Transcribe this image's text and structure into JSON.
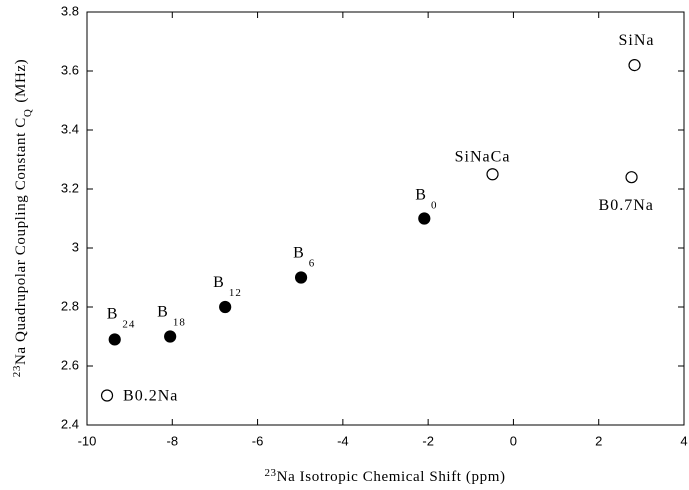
{
  "chart_data": {
    "type": "scatter",
    "x_label": {
      "sup": "23",
      "text": "Na Isotropic Chemical Shift (ppm)"
    },
    "y_label": {
      "sup": "23",
      "main": "Na Quadrupolar Coupling Constant C",
      "sub": "Q",
      "tail": "(MHz)"
    },
    "xlim": [
      -10,
      4
    ],
    "xticks": [
      -10,
      -8,
      -6,
      -4,
      -2,
      0,
      2,
      4
    ],
    "ylim": [
      2.4,
      3.8
    ],
    "yticks": [
      2.4,
      2.6,
      2.8,
      3,
      3.2,
      3.4,
      3.6,
      3.8
    ],
    "series": [
      {
        "marker": "filled",
        "color": "#000000",
        "x": [
          -9.35,
          -8.05,
          -6.76,
          -4.98,
          -2.09
        ],
        "values": [
          2.69,
          2.7,
          2.8,
          2.9,
          3.1
        ],
        "labels": [
          {
            "text": "B",
            "sub": "24"
          },
          {
            "text": "B",
            "sub": "18"
          },
          {
            "text": "B",
            "sub": "12"
          },
          {
            "text": "B",
            "sub": "6"
          },
          {
            "text": "B",
            "sub": "0"
          }
        ]
      },
      {
        "marker": "open",
        "color": "#000000",
        "x": [
          -9.53,
          -0.49,
          2.77,
          2.84
        ],
        "values": [
          2.5,
          3.25,
          3.24,
          3.62
        ],
        "labels": [
          {
            "text": "B0.2Na"
          },
          {
            "text": "SiNaCa"
          },
          {
            "text": "B0.7Na"
          },
          {
            "text": "SiNa"
          }
        ]
      }
    ]
  }
}
